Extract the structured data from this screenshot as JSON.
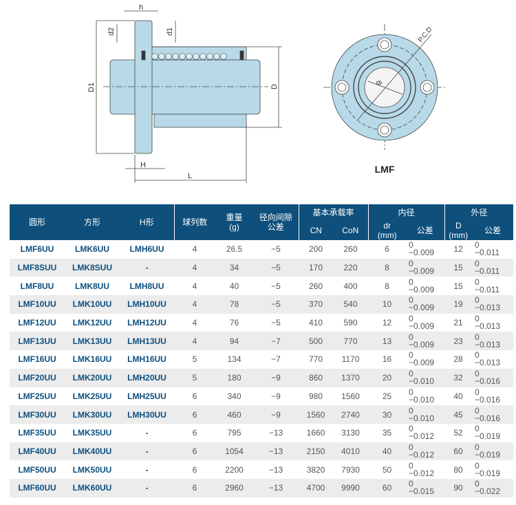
{
  "drawing": {
    "labels": {
      "h": "h",
      "d2": "d2",
      "d1": "d1",
      "D1": "D1",
      "D": "D",
      "H": "H",
      "L": "L",
      "pcd": "P.C.D",
      "dr": "dr"
    },
    "caption": "LMF",
    "colors": {
      "body": "#b8d9e8",
      "line": "#444444"
    }
  },
  "table": {
    "header": {
      "round": "圆形",
      "square": "方形",
      "h_type": "H形",
      "ball_rows": "球列数",
      "weight": "重量",
      "weight_unit": "(g)",
      "radial_clearance": "径向间隙",
      "radial_clearance_2": "公差",
      "basic_load": "基本承载率",
      "cn": "CN",
      "con": "CoN",
      "inner": "内径",
      "dr": "dr",
      "dr_unit": "(mm)",
      "inner_tol": "公差",
      "outer": "外径",
      "D": "D",
      "D_unit": "(mm)",
      "outer_tol": "公差"
    },
    "colors": {
      "header_bg": "#0e4f7b",
      "model_text": "#0d4f80",
      "stripe": "#ececec"
    },
    "rows": [
      {
        "round": "LMF6UU",
        "square": "LMK6UU",
        "h": "LMH6UU",
        "balls": "4",
        "weight": "26.5",
        "clearance": "−5",
        "cn": "200",
        "con": "260",
        "dr": "6",
        "dr_tol_upper": "0",
        "dr_tol_lower": "−0.009",
        "D": "12",
        "D_tol_upper": "0",
        "D_tol_lower": "−0.011"
      },
      {
        "round": "LMF8SUU",
        "square": "LMK8SUU",
        "h": "-",
        "balls": "4",
        "weight": "34",
        "clearance": "−5",
        "cn": "170",
        "con": "220",
        "dr": "8",
        "dr_tol_upper": "0",
        "dr_tol_lower": "−0.009",
        "D": "15",
        "D_tol_upper": "0",
        "D_tol_lower": "−0.011"
      },
      {
        "round": "LMF8UU",
        "square": "LMK8UU",
        "h": "LMH8UU",
        "balls": "4",
        "weight": "40",
        "clearance": "−5",
        "cn": "260",
        "con": "400",
        "dr": "8",
        "dr_tol_upper": "0",
        "dr_tol_lower": "−0.009",
        "D": "15",
        "D_tol_upper": "0",
        "D_tol_lower": "−0.011"
      },
      {
        "round": "LMF10UU",
        "square": "LMK10UU",
        "h": "LMH10UU",
        "balls": "4",
        "weight": "78",
        "clearance": "−5",
        "cn": "370",
        "con": "540",
        "dr": "10",
        "dr_tol_upper": "0",
        "dr_tol_lower": "−0.009",
        "D": "19",
        "D_tol_upper": "0",
        "D_tol_lower": "−0.013"
      },
      {
        "round": "LMF12UU",
        "square": "LMK12UU",
        "h": "LMH12UU",
        "balls": "4",
        "weight": "76",
        "clearance": "−5",
        "cn": "410",
        "con": "590",
        "dr": "12",
        "dr_tol_upper": "0",
        "dr_tol_lower": "−0.009",
        "D": "21",
        "D_tol_upper": "0",
        "D_tol_lower": "−0.013"
      },
      {
        "round": "LMF13UU",
        "square": "LMK13UU",
        "h": "LMH13UU",
        "balls": "4",
        "weight": "94",
        "clearance": "−7",
        "cn": "500",
        "con": "770",
        "dr": "13",
        "dr_tol_upper": "0",
        "dr_tol_lower": "−0.009",
        "D": "23",
        "D_tol_upper": "0",
        "D_tol_lower": "−0.013"
      },
      {
        "round": "LMF16UU",
        "square": "LMK16UU",
        "h": "LMH16UU",
        "balls": "5",
        "weight": "134",
        "clearance": "−7",
        "cn": "770",
        "con": "1170",
        "dr": "16",
        "dr_tol_upper": "0",
        "dr_tol_lower": "−0.009",
        "D": "28",
        "D_tol_upper": "0",
        "D_tol_lower": "−0.013"
      },
      {
        "round": "LMF20UU",
        "square": "LMK20UU",
        "h": "LMH20UU",
        "balls": "5",
        "weight": "180",
        "clearance": "−9",
        "cn": "860",
        "con": "1370",
        "dr": "20",
        "dr_tol_upper": "0",
        "dr_tol_lower": "−0.010",
        "D": "32",
        "D_tol_upper": "0",
        "D_tol_lower": "−0.016"
      },
      {
        "round": "LMF25UU",
        "square": "LMK25UU",
        "h": "LMH25UU",
        "balls": "6",
        "weight": "340",
        "clearance": "−9",
        "cn": "980",
        "con": "1560",
        "dr": "25",
        "dr_tol_upper": "0",
        "dr_tol_lower": "−0.010",
        "D": "40",
        "D_tol_upper": "0",
        "D_tol_lower": "−0.016"
      },
      {
        "round": "LMF30UU",
        "square": "LMK30UU",
        "h": "LMH30UU",
        "balls": "6",
        "weight": "460",
        "clearance": "−9",
        "cn": "1560",
        "con": "2740",
        "dr": "30",
        "dr_tol_upper": "0",
        "dr_tol_lower": "−0.010",
        "D": "45",
        "D_tol_upper": "0",
        "D_tol_lower": "−0.016"
      },
      {
        "round": "LMF35UU",
        "square": "LMK35UU",
        "h": "-",
        "balls": "6",
        "weight": "795",
        "clearance": "−13",
        "cn": "1660",
        "con": "3130",
        "dr": "35",
        "dr_tol_upper": "0",
        "dr_tol_lower": "−0.012",
        "D": "52",
        "D_tol_upper": "0",
        "D_tol_lower": "−0.019"
      },
      {
        "round": "LMF40UU",
        "square": "LMK40UU",
        "h": "-",
        "balls": "6",
        "weight": "1054",
        "clearance": "−13",
        "cn": "2150",
        "con": "4010",
        "dr": "40",
        "dr_tol_upper": "0",
        "dr_tol_lower": "−0.012",
        "D": "60",
        "D_tol_upper": "0",
        "D_tol_lower": "−0.019"
      },
      {
        "round": "LMF50UU",
        "square": "LMK50UU",
        "h": "-",
        "balls": "6",
        "weight": "2200",
        "clearance": "−13",
        "cn": "3820",
        "con": "7930",
        "dr": "50",
        "dr_tol_upper": "0",
        "dr_tol_lower": "−0.012",
        "D": "80",
        "D_tol_upper": "0",
        "D_tol_lower": "−0.019"
      },
      {
        "round": "LMF60UU",
        "square": "LMK60UU",
        "h": "-",
        "balls": "6",
        "weight": "2960",
        "clearance": "−13",
        "cn": "4700",
        "con": "9990",
        "dr": "60",
        "dr_tol_upper": "0",
        "dr_tol_lower": "−0.015",
        "D": "90",
        "D_tol_upper": "0",
        "D_tol_lower": "−0.022"
      }
    ]
  }
}
